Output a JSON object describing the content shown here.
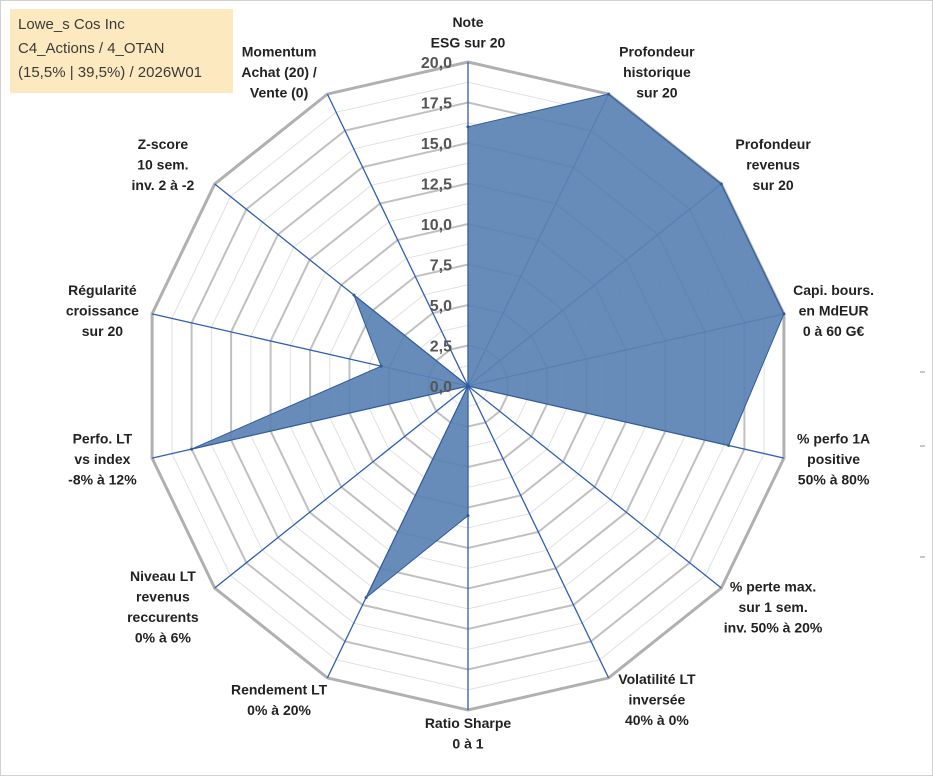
{
  "title_box": {
    "line1": "Lowe_s Cos Inc",
    "line2": "C4_Actions / 4_OTAN",
    "line3": "(15,5% | 39,5%) / 2026W01"
  },
  "colors": {
    "fill": "#5b82b3",
    "stroke": "#2e5a9c",
    "spoke": "#2f5eb0",
    "ring": "#c0c0c0",
    "ring_outer": "#b0b0b0",
    "minor": "#e0e0e0"
  },
  "chart_data": {
    "type": "radar",
    "title": "Lowe_s Cos Inc",
    "rmin": 0,
    "rmax": 20,
    "ticks": [
      "0,0",
      "2,5",
      "5,0",
      "7,5",
      "10,0",
      "12,5",
      "15,0",
      "17,5",
      "20,0"
    ],
    "tick_values": [
      0,
      2.5,
      5,
      7.5,
      10,
      12.5,
      15,
      17.5,
      20
    ],
    "axes": [
      {
        "label": [
          "Note",
          "ESG sur 20"
        ],
        "value": 16
      },
      {
        "label": [
          "Profondeur",
          "historique",
          "sur 20"
        ],
        "value": 20
      },
      {
        "label": [
          "Profondeur",
          "revenus",
          "sur 20"
        ],
        "value": 20
      },
      {
        "label": [
          "Capi. bours.",
          "en MdEUR",
          "0 à 60 G€"
        ],
        "value": 20
      },
      {
        "label": [
          "% perfo 1A",
          "positive",
          "50% à 80%"
        ],
        "value": 16.5
      },
      {
        "label": [
          "% perte max.",
          "sur 1 sem.",
          "inv. 50% à 20%"
        ],
        "value": 0
      },
      {
        "label": [
          "Volatilité LT",
          "inversée",
          "40% à 0%"
        ],
        "value": 0
      },
      {
        "label": [
          "Ratio Sharpe",
          "0 à 1"
        ],
        "value": 8
      },
      {
        "label": [
          "Rendement LT",
          "0% à 20%"
        ],
        "value": 14.5
      },
      {
        "label": [
          "Niveau LT",
          "revenus",
          "reccurents",
          "0% à 6%"
        ],
        "value": 0
      },
      {
        "label": [
          "Perfo. LT",
          "vs index",
          "-8% à 12%"
        ],
        "value": 17.5
      },
      {
        "label": [
          "Régularité",
          "croissance",
          "sur 20"
        ],
        "value": 5.5
      },
      {
        "label": [
          "Z-score",
          "10 sem.",
          "inv. 2 à -2"
        ],
        "value": 9
      },
      {
        "label": [
          "Momentum",
          "Achat (20) /",
          "Vente (0)"
        ],
        "value": 0
      }
    ]
  }
}
